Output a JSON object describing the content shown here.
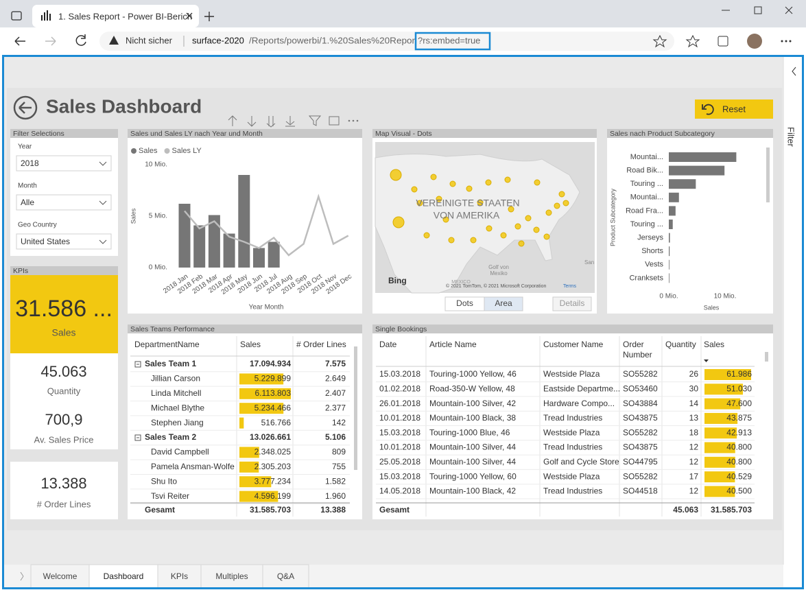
{
  "browser": {
    "tab_title": "1. Sales Report - Power BI-Berich",
    "security": "Nicht sicher",
    "url_host": "surface-2020",
    "url_path": "/Reports/powerbi/1.%20Sales%20Repor",
    "url_query": "?rs:embed=true"
  },
  "report": {
    "title": "Sales Dashboard",
    "reset": "Reset",
    "filter_pane": "Filter",
    "pages": [
      "Welcome",
      "Dashboard",
      "KPIs",
      "Multiples",
      "Q&A"
    ],
    "active_page": 1
  },
  "filters": {
    "title": "Filter Selections",
    "items": [
      {
        "label": "Year",
        "value": "2018"
      },
      {
        "label": "Month",
        "value": "Alle"
      },
      {
        "label": "Geo Country",
        "value": "United States"
      }
    ]
  },
  "kpis": {
    "title": "KPIs",
    "cards": [
      {
        "value": "31.586 ...",
        "label": "Sales"
      },
      {
        "value": "45.063",
        "label": "Quantity"
      },
      {
        "value": "700,9",
        "label": "Av. Sales Price"
      },
      {
        "value": "13.388",
        "label": "# Order Lines"
      }
    ]
  },
  "map": {
    "title": "Map Visual - Dots",
    "country": [
      "VEREINIGTE STAATEN",
      "VON AMERIKA"
    ],
    "gulf": [
      "Golf von",
      "Mexiko"
    ],
    "mexico": "MEXICO",
    "city": "San",
    "provider": "Bing",
    "copyright": "© 2021 TomTom, © 2021 Microsoft Corporation",
    "terms": "Terms",
    "buttons": [
      "Dots",
      "Area",
      "Details"
    ]
  },
  "chart_data": [
    {
      "type": "combo",
      "title": "Sales und Sales LY nach Year und Month",
      "x_label": "Year Month",
      "y_label": "Sales",
      "categories": [
        "2018 Jan",
        "2018 Feb",
        "2018 Mar",
        "2018 Apr",
        "2018 May",
        "2018 Jun",
        "2018 Jul",
        "2018 Aug",
        "2018 Sep",
        "2018 Oct",
        "2018 Nov",
        "2018 Dec"
      ],
      "series": [
        {
          "name": "Sales",
          "kind": "bar",
          "color": "#767676",
          "values": [
            6.2,
            4.1,
            5.1,
            3.3,
            9.0,
            1.9,
            2.5,
            null,
            null,
            null,
            null,
            null
          ]
        },
        {
          "name": "Sales LY",
          "kind": "line",
          "color": "#bdbdbd",
          "values": [
            5.5,
            3.8,
            4.5,
            3.0,
            2.5,
            1.9,
            2.9,
            1.2,
            2.3,
            6.9,
            2.3,
            3.1
          ]
        }
      ],
      "ylim": [
        0,
        10
      ],
      "yticks": [
        {
          "value": 0,
          "label": "0 Mio."
        },
        {
          "value": 5,
          "label": "5 Mio."
        },
        {
          "value": 10,
          "label": "10 Mio."
        }
      ],
      "grid": false,
      "legend": "top-left"
    },
    {
      "type": "hbar",
      "title": "Sales nach Product Subcategory",
      "x_label": "Sales",
      "y_label": "Product Subcategory",
      "color": "#767676",
      "categories": [
        "Mountai...",
        "Road Bik...",
        "Touring ...",
        "Mountai...",
        "Road Fra...",
        "Touring ...",
        "Jerseys",
        "Shorts",
        "Vests",
        "Cranksets"
      ],
      "values": [
        12.0,
        9.9,
        4.8,
        1.8,
        1.2,
        0.7,
        0.2,
        0.15,
        0.1,
        0.1
      ],
      "xlim": [
        0,
        12.7
      ],
      "xticks": [
        {
          "value": 0,
          "label": "0 Mio."
        },
        {
          "value": 10,
          "label": "10 Mio."
        }
      ]
    }
  ],
  "teams": {
    "title": "Sales Teams Performance",
    "headers": [
      "DepartmentName",
      "Sales",
      "# Order Lines"
    ],
    "rows": [
      {
        "group": true,
        "cells": [
          "Sales Team 1",
          "17.094.934",
          "7.575"
        ]
      },
      {
        "cells": [
          "Jillian Carson",
          "5.229.899",
          "2.649"
        ],
        "bar": 5229899
      },
      {
        "cells": [
          "Linda Mitchell",
          "6.113.803",
          "2.407"
        ],
        "bar": 6113803
      },
      {
        "cells": [
          "Michael Blythe",
          "5.234.466",
          "2.377"
        ],
        "bar": 5234466
      },
      {
        "cells": [
          "Stephen Jiang",
          "516.766",
          "142"
        ],
        "bar": 516766
      },
      {
        "group": true,
        "cells": [
          "Sales Team 2",
          "13.026.661",
          "5.106"
        ]
      },
      {
        "cells": [
          "David Campbell",
          "2.348.025",
          "809"
        ],
        "bar": 2348025
      },
      {
        "cells": [
          "Pamela Ansman-Wolfe",
          "2.305.203",
          "755"
        ],
        "bar": 2305203
      },
      {
        "cells": [
          "Shu Ito",
          "3.777.234",
          "1.582"
        ],
        "bar": 3777234
      },
      {
        "cells": [
          "Tsvi Reiter",
          "4.596.199",
          "1.960"
        ],
        "bar": 4596199
      }
    ],
    "total": [
      "Gesamt",
      "31.585.703",
      "13.388"
    ]
  },
  "bookings": {
    "title": "Single Bookings",
    "headers": [
      "Date",
      "Article Name",
      "Customer Name",
      "Order Number",
      "Quantity",
      "Sales"
    ],
    "rows": [
      {
        "cells": [
          "15.03.2018",
          "Touring-1000 Yellow, 46",
          "Westside Plaza",
          "SO55282",
          "26",
          "61.986"
        ],
        "bar": 61986
      },
      {
        "cells": [
          "01.02.2018",
          "Road-350-W Yellow, 48",
          "Eastside Departme...",
          "SO53460",
          "30",
          "51.030"
        ],
        "bar": 51030
      },
      {
        "cells": [
          "26.01.2018",
          "Mountain-100 Silver, 42",
          "Hardware Compo...",
          "SO43884",
          "14",
          "47.600"
        ],
        "bar": 47600
      },
      {
        "cells": [
          "10.01.2018",
          "Mountain-100 Black, 38",
          "Tread Industries",
          "SO43875",
          "13",
          "43.875"
        ],
        "bar": 43875
      },
      {
        "cells": [
          "15.03.2018",
          "Touring-1000 Blue, 46",
          "Westside Plaza",
          "SO55282",
          "18",
          "42.913"
        ],
        "bar": 42913
      },
      {
        "cells": [
          "10.01.2018",
          "Mountain-100 Silver, 44",
          "Tread Industries",
          "SO43875",
          "12",
          "40.800"
        ],
        "bar": 40800
      },
      {
        "cells": [
          "25.05.2018",
          "Mountain-100 Silver, 44",
          "Golf and Cycle Store",
          "SO44795",
          "12",
          "40.800"
        ],
        "bar": 40800
      },
      {
        "cells": [
          "15.03.2018",
          "Touring-1000 Yellow, 60",
          "Westside Plaza",
          "SO55282",
          "17",
          "40.529"
        ],
        "bar": 40529
      },
      {
        "cells": [
          "14.05.2018",
          "Mountain-100 Black, 42",
          "Tread Industries",
          "SO44518",
          "12",
          "40.500"
        ],
        "bar": 40500
      }
    ],
    "total": [
      "Gesamt",
      "45.063",
      "31.585.703"
    ]
  }
}
